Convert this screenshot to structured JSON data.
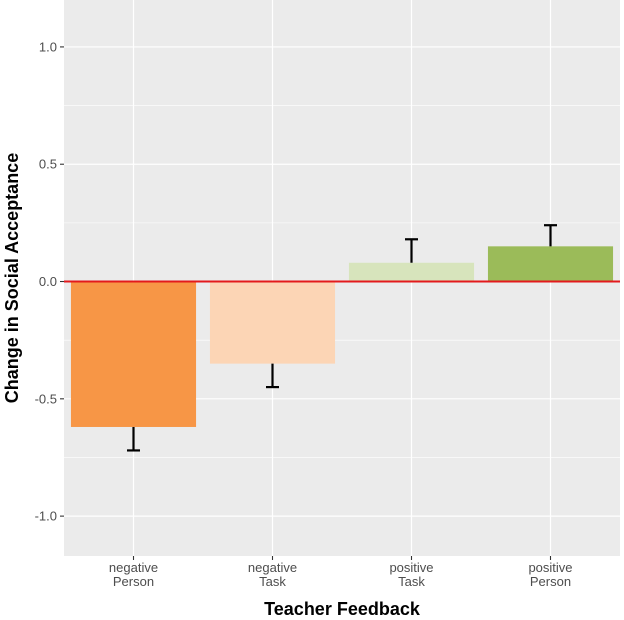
{
  "chart_data": {
    "type": "bar",
    "title": "",
    "xlabel": "Teacher Feedback",
    "ylabel": "Change in Social Acceptance",
    "ylim": [
      -1.17,
      1.2
    ],
    "yticks": [
      -1.0,
      -0.5,
      0.0,
      0.5,
      1.0
    ],
    "ytick_labels": [
      "-1.0",
      "-0.5",
      "0.0",
      "0.5",
      "1.0"
    ],
    "grid": true,
    "reference_line": {
      "y": 0.0,
      "color": "#e31a1c"
    },
    "categories": [
      {
        "lines": [
          "negative",
          "Person"
        ],
        "value": -0.62,
        "error": 0.1,
        "color": "#f79646"
      },
      {
        "lines": [
          "negative",
          "Task"
        ],
        "value": -0.35,
        "error": 0.1,
        "color": "#fcd5b5"
      },
      {
        "lines": [
          "positive",
          "Task"
        ],
        "value": 0.08,
        "error": 0.1,
        "color": "#d7e4bc"
      },
      {
        "lines": [
          "positive",
          "Person"
        ],
        "value": 0.15,
        "error": 0.09,
        "color": "#9bbb59"
      }
    ],
    "colors": {
      "panel": "#ebebeb",
      "grid": "#ffffff",
      "errorbar": "#000000"
    }
  }
}
